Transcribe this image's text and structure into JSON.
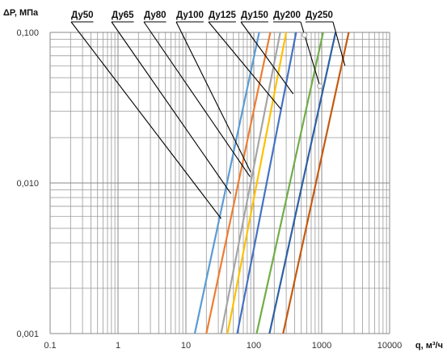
{
  "chart_data": {
    "type": "line",
    "xscale": "log",
    "yscale": "log",
    "xlim": [
      0.1,
      10000
    ],
    "ylim": [
      0.001,
      0.1
    ],
    "x_ticks": [
      "0.1",
      "1",
      "10",
      "100",
      "1000",
      "10000"
    ],
    "y_ticks": [
      "0,001",
      "0,010",
      "0,100"
    ],
    "xlabel": "q, м³/ч",
    "ylabel": "ΔP, МПа",
    "grid": true,
    "series": [
      {
        "name": "Ду50",
        "color": "#5b9bd5",
        "x": [
          13.5,
          120
        ],
        "y": [
          0.001,
          0.1
        ]
      },
      {
        "name": "Ду65",
        "color": "#ed7d31",
        "x": [
          20,
          175
        ],
        "y": [
          0.001,
          0.1
        ]
      },
      {
        "name": "Ду80",
        "color": "#a5a5a5",
        "x": [
          33,
          245
        ],
        "y": [
          0.001,
          0.1
        ]
      },
      {
        "name": "Ду100",
        "color": "#ffc000",
        "x": [
          41,
          300
        ],
        "y": [
          0.001,
          0.1
        ]
      },
      {
        "name": "Ду125",
        "color": "#4472c4",
        "x": [
          57,
          420
        ],
        "y": [
          0.001,
          0.1
        ]
      },
      {
        "name": "Ду150",
        "color": "#70ad47",
        "x": [
          110,
          1050
        ],
        "y": [
          0.001,
          0.1
        ]
      },
      {
        "name": "Ду200",
        "color": "#2e5fa3",
        "x": [
          170,
          1600
        ],
        "y": [
          0.001,
          0.1
        ]
      },
      {
        "name": "Ду250",
        "color": "#c55a11",
        "x": [
          270,
          2500
        ],
        "y": [
          0.001,
          0.1
        ]
      }
    ],
    "callouts": [
      {
        "label": "Ду50",
        "x": 33,
        "y": 0.0058
      },
      {
        "label": "Ду65",
        "x": 46,
        "y": 0.0085
      },
      {
        "label": "Ду80",
        "x": 88,
        "y": 0.011
      },
      {
        "label": "Ду100",
        "x": 90,
        "y": 0.0118
      },
      {
        "label": "Ду125",
        "x": 250,
        "y": 0.031
      },
      {
        "label": "Ду150",
        "x": 380,
        "y": 0.039
      },
      {
        "label": "Ду200",
        "x": 940,
        "y": 0.044
      },
      {
        "label": "Ду250",
        "x": 2200,
        "y": 0.06
      }
    ]
  }
}
